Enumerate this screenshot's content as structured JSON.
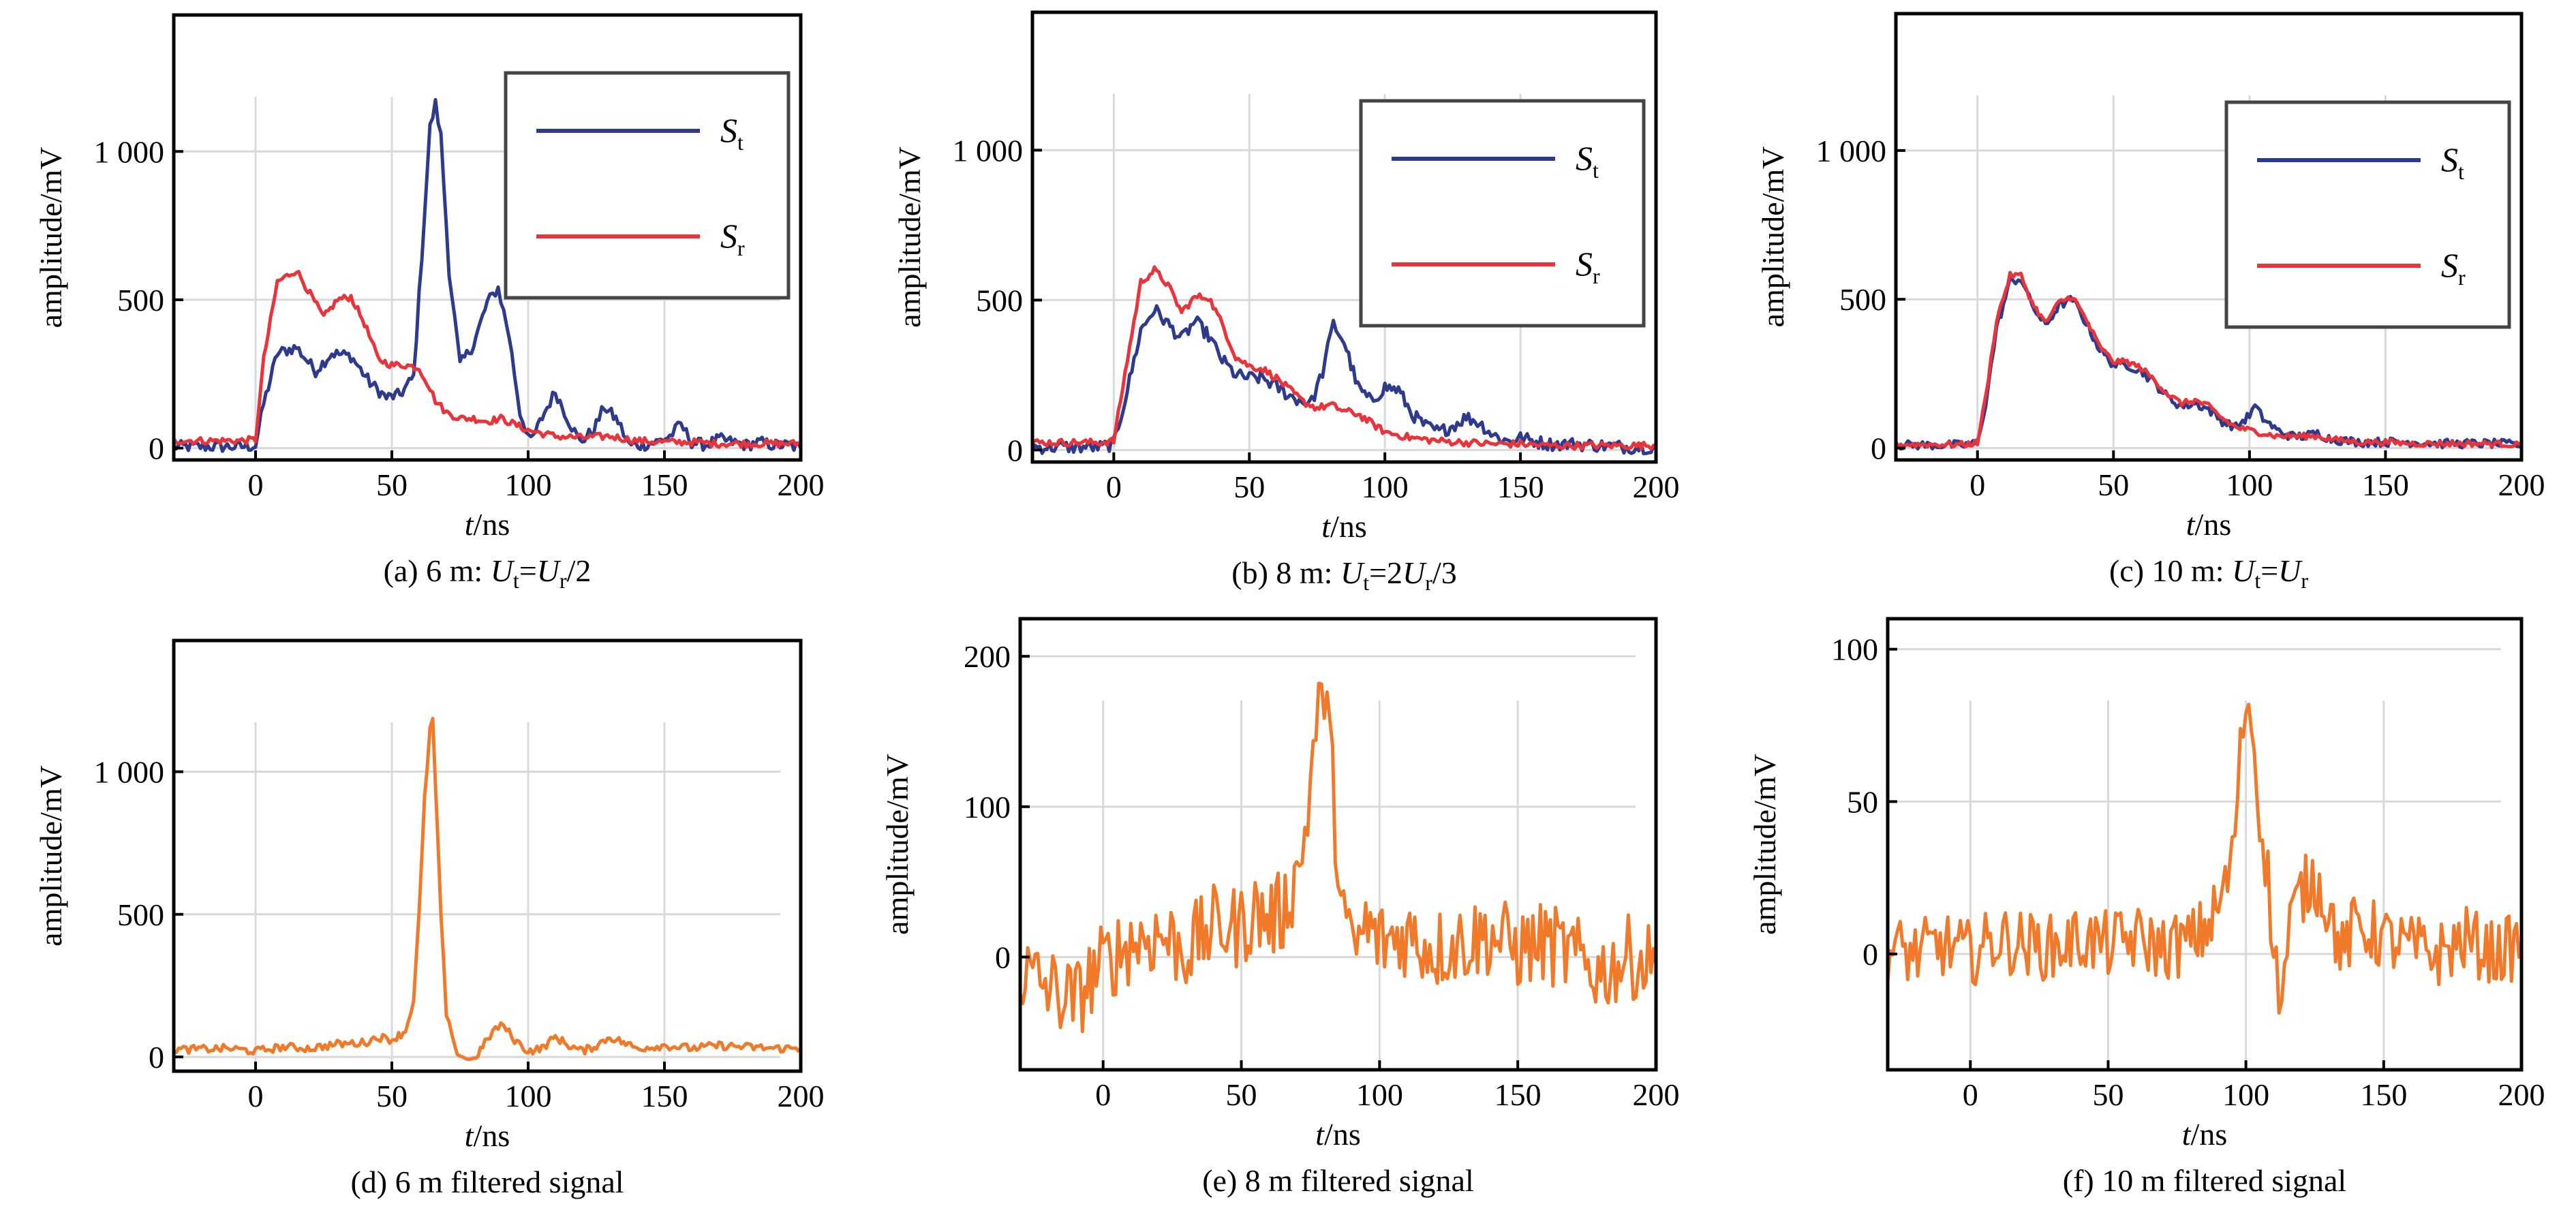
{
  "colors": {
    "st": "#2e3a8c",
    "sr": "#e8343a",
    "filtered": "#f07a2a",
    "grid": "#d9d9d9",
    "axis": "#000000"
  },
  "chart_data": [
    {
      "id": "a",
      "type": "line",
      "caption": "(a) 6 m: Ut=Ur/2",
      "caption_parts": [
        "(a) 6 m: ",
        "U",
        "t",
        "=",
        "U",
        "r",
        "/2"
      ],
      "xlabel_parts": [
        "t",
        "/ns"
      ],
      "ylabel": "amplitude/mV",
      "xlim": [
        -30,
        200
      ],
      "ylim": [
        -40,
        1460
      ],
      "xticks": [
        0,
        50,
        100,
        150,
        200
      ],
      "xtick_labels": [
        "0",
        "50",
        "100",
        "150",
        "200"
      ],
      "yticks": [
        0,
        500,
        1000
      ],
      "ytick_labels": [
        "0",
        "500",
        "1 000"
      ],
      "grid": true,
      "legend": {
        "placement": "top-right",
        "entries": [
          {
            "main": "S",
            "sub": "t",
            "series": "St"
          },
          {
            "main": "S",
            "sub": "r",
            "series": "Sr"
          }
        ]
      },
      "series": [
        {
          "name": "St",
          "color": "#2e3a8c",
          "x": [
            -30,
            -5,
            0,
            3,
            8,
            15,
            22,
            28,
            35,
            42,
            48,
            53,
            58,
            61,
            64,
            66,
            68,
            71,
            75,
            80,
            85,
            89,
            93,
            97,
            101,
            106,
            110,
            115,
            119,
            124,
            128,
            133,
            137,
            142,
            147,
            152,
            156,
            160,
            165,
            170,
            175,
            180,
            185,
            190,
            195,
            200
          ],
          "y": [
            5,
            5,
            8,
            150,
            320,
            340,
            260,
            320,
            310,
            220,
            170,
            180,
            240,
            650,
            1080,
            1160,
            1050,
            600,
            280,
            350,
            490,
            540,
            380,
            120,
            20,
            120,
            190,
            90,
            20,
            60,
            140,
            90,
            10,
            10,
            20,
            40,
            80,
            20,
            10,
            30,
            20,
            10,
            20,
            10,
            10,
            0
          ]
        },
        {
          "name": "Sr",
          "color": "#e8343a",
          "x": [
            -30,
            -5,
            0,
            3,
            8,
            15,
            20,
            25,
            30,
            35,
            40,
            45,
            50,
            55,
            60,
            63,
            66,
            70,
            75,
            80,
            85,
            90,
            95,
            100,
            110,
            120,
            130,
            140,
            150,
            160,
            170,
            180,
            190,
            200
          ],
          "y": [
            25,
            25,
            28,
            300,
            560,
            600,
            520,
            440,
            500,
            510,
            420,
            300,
            280,
            280,
            270,
            220,
            160,
            120,
            100,
            100,
            90,
            100,
            80,
            60,
            40,
            35,
            40,
            25,
            20,
            20,
            15,
            15,
            15,
            15
          ]
        }
      ]
    },
    {
      "id": "b",
      "type": "line",
      "caption": "(b) 8 m: Ut=2Ur/3",
      "caption_parts": [
        "(b) 8 m: ",
        "U",
        "t",
        "=2",
        "U",
        "r",
        "/3"
      ],
      "xlabel_parts": [
        "t",
        "/ns"
      ],
      "ylabel": "amplitude/mV",
      "xlim": [
        -30,
        200
      ],
      "ylim": [
        -40,
        1460
      ],
      "xticks": [
        0,
        50,
        100,
        150,
        200
      ],
      "xtick_labels": [
        "0",
        "50",
        "100",
        "150",
        "200"
      ],
      "yticks": [
        0,
        500,
        1000
      ],
      "ytick_labels": [
        "0",
        "500",
        "1 000"
      ],
      "grid": true,
      "legend": {
        "placement": "top-right",
        "entries": [
          {
            "main": "S",
            "sub": "t",
            "series": "St"
          },
          {
            "main": "S",
            "sub": "r",
            "series": "Sr"
          }
        ]
      },
      "series": [
        {
          "name": "St",
          "color": "#2e3a8c",
          "x": [
            -30,
            -5,
            0,
            5,
            10,
            15,
            20,
            25,
            30,
            35,
            40,
            45,
            50,
            55,
            60,
            65,
            70,
            73,
            77,
            81,
            85,
            90,
            95,
            100,
            105,
            110,
            115,
            120,
            125,
            130,
            135,
            140,
            145,
            150,
            155,
            160,
            170,
            180,
            190,
            200
          ],
          "y": [
            10,
            10,
            20,
            200,
            400,
            470,
            420,
            370,
            430,
            380,
            300,
            250,
            240,
            240,
            210,
            180,
            160,
            160,
            260,
            420,
            360,
            210,
            160,
            210,
            200,
            120,
            80,
            60,
            80,
            110,
            90,
            50,
            30,
            40,
            30,
            20,
            20,
            15,
            10,
            10
          ]
        },
        {
          "name": "Sr",
          "color": "#e8343a",
          "x": [
            -30,
            -5,
            0,
            5,
            10,
            15,
            20,
            25,
            30,
            35,
            40,
            45,
            50,
            55,
            60,
            65,
            70,
            75,
            80,
            85,
            90,
            95,
            100,
            110,
            120,
            130,
            140,
            150,
            160,
            170,
            180,
            190,
            200
          ],
          "y": [
            25,
            25,
            30,
            300,
            560,
            600,
            550,
            460,
            510,
            510,
            420,
            310,
            280,
            270,
            240,
            200,
            160,
            140,
            150,
            130,
            120,
            90,
            60,
            40,
            30,
            25,
            20,
            20,
            15,
            15,
            15,
            15,
            15
          ]
        }
      ]
    },
    {
      "id": "c",
      "type": "line",
      "caption": "(c) 10 m: Ut=Ur",
      "caption_parts": [
        "(c) 10 m: ",
        "U",
        "t",
        "=",
        "U",
        "r",
        ""
      ],
      "xlabel_parts": [
        "t",
        "/ns"
      ],
      "ylabel": "amplitude/mV",
      "xlim": [
        -30,
        200
      ],
      "ylim": [
        -40,
        1460
      ],
      "xticks": [
        0,
        50,
        100,
        150,
        200
      ],
      "xtick_labels": [
        "0",
        "50",
        "100",
        "150",
        "200"
      ],
      "yticks": [
        0,
        500,
        1000
      ],
      "ytick_labels": [
        "0",
        "500",
        "1 000"
      ],
      "grid": true,
      "legend": {
        "placement": "top-right",
        "entries": [
          {
            "main": "S",
            "sub": "t",
            "series": "St"
          },
          {
            "main": "S",
            "sub": "r",
            "series": "Sr"
          }
        ]
      },
      "series": [
        {
          "name": "St",
          "color": "#2e3a8c",
          "x": [
            -30,
            -5,
            0,
            3,
            7,
            12,
            16,
            20,
            25,
            30,
            35,
            40,
            45,
            50,
            55,
            60,
            65,
            70,
            75,
            80,
            85,
            90,
            95,
            100,
            102,
            105,
            110,
            115,
            120,
            125,
            130,
            140,
            150,
            160,
            170,
            180,
            190,
            200
          ],
          "y": [
            10,
            10,
            15,
            150,
            400,
            560,
            570,
            480,
            410,
            480,
            500,
            420,
            330,
            280,
            280,
            260,
            220,
            170,
            140,
            150,
            130,
            90,
            70,
            110,
            140,
            100,
            60,
            40,
            40,
            50,
            30,
            20,
            20,
            20,
            15,
            15,
            15,
            10
          ]
        },
        {
          "name": "Sr",
          "color": "#e8343a",
          "x": [
            -30,
            -5,
            0,
            3,
            7,
            12,
            16,
            20,
            25,
            30,
            35,
            40,
            45,
            50,
            55,
            60,
            65,
            70,
            75,
            80,
            85,
            90,
            95,
            100,
            105,
            110,
            115,
            120,
            125,
            130,
            140,
            150,
            160,
            170,
            180,
            190,
            200
          ],
          "y": [
            12,
            12,
            18,
            170,
            430,
            580,
            580,
            490,
            420,
            490,
            510,
            430,
            340,
            290,
            290,
            270,
            230,
            180,
            150,
            160,
            140,
            100,
            70,
            60,
            50,
            40,
            40,
            40,
            40,
            30,
            20,
            20,
            15,
            15,
            15,
            15,
            10
          ]
        }
      ]
    },
    {
      "id": "d",
      "type": "line",
      "caption": "(d) 6 m filtered signal",
      "caption_parts": [
        "(d) 6 m filtered signal"
      ],
      "xlabel_parts": [
        "t",
        "/ns"
      ],
      "ylabel": "amplitude/mV",
      "xlim": [
        -30,
        200
      ],
      "ylim": [
        -50,
        1460
      ],
      "xticks": [
        0,
        50,
        100,
        150,
        200
      ],
      "xtick_labels": [
        "0",
        "50",
        "100",
        "150",
        "200"
      ],
      "yticks": [
        0,
        500,
        1000
      ],
      "ytick_labels": [
        "0",
        "500",
        "1 000"
      ],
      "grid": true,
      "series": [
        {
          "name": "",
          "color": "#f07a2a",
          "x": [
            -30,
            -10,
            0,
            10,
            20,
            30,
            40,
            45,
            50,
            55,
            58,
            60,
            62,
            64,
            65,
            66,
            68,
            70,
            73,
            76,
            80,
            85,
            88,
            91,
            95,
            100,
            105,
            110,
            115,
            120,
            125,
            130,
            135,
            140,
            150,
            160,
            170,
            180,
            190,
            200
          ],
          "y": [
            25,
            30,
            20,
            35,
            30,
            45,
            50,
            70,
            60,
            90,
            200,
            500,
            900,
            1150,
            1180,
            950,
            500,
            150,
            30,
            0,
            -10,
            60,
            100,
            110,
            60,
            20,
            30,
            70,
            40,
            20,
            40,
            70,
            50,
            30,
            40,
            30,
            40,
            35,
            30,
            30
          ]
        }
      ]
    },
    {
      "id": "e",
      "type": "line",
      "caption": "(e) 8 m filtered signal",
      "caption_parts": [
        "(e) 8 m filtered signal"
      ],
      "xlabel_parts": [
        "t",
        "/ns"
      ],
      "ylabel": "amplitude/mV",
      "xlim": [
        -30,
        200
      ],
      "ylim": [
        -75,
        225
      ],
      "xticks": [
        0,
        50,
        100,
        150,
        200
      ],
      "xtick_labels": [
        "0",
        "50",
        "100",
        "150",
        "200"
      ],
      "yticks": [
        0,
        100,
        200
      ],
      "ytick_labels": [
        "0",
        "100",
        "200"
      ],
      "grid": true,
      "series": [
        {
          "name": "",
          "color": "#f07a2a",
          "x": [
            -30,
            -20,
            -10,
            -5,
            0,
            10,
            20,
            30,
            40,
            50,
            55,
            60,
            65,
            70,
            73,
            75,
            77,
            79,
            80,
            82,
            84,
            86,
            88,
            90,
            95,
            100,
            110,
            120,
            130,
            140,
            150,
            160,
            170,
            180,
            190,
            200
          ],
          "y": [
            -10,
            -20,
            -30,
            -15,
            -5,
            10,
            15,
            5,
            20,
            20,
            30,
            25,
            30,
            55,
            80,
            120,
            150,
            170,
            180,
            140,
            90,
            45,
            20,
            0,
            20,
            10,
            15,
            5,
            10,
            15,
            5,
            10,
            0,
            -10,
            0,
            -5
          ]
        }
      ]
    },
    {
      "id": "f",
      "type": "line",
      "caption": "(f) 10 m filtered signal",
      "caption_parts": [
        "(f) 10 m filtered signal"
      ],
      "xlabel_parts": [
        "t",
        "/ns"
      ],
      "ylabel": "amplitude/mV",
      "xlim": [
        -30,
        200
      ],
      "ylim": [
        -38,
        110
      ],
      "xticks": [
        0,
        50,
        100,
        150,
        200
      ],
      "xtick_labels": [
        "0",
        "50",
        "100",
        "150",
        "200"
      ],
      "yticks": [
        0,
        50,
        100
      ],
      "ytick_labels": [
        "0",
        "50",
        "100"
      ],
      "grid": true,
      "series": [
        {
          "name": "",
          "color": "#f07a2a",
          "x": [
            -30,
            -20,
            -10,
            0,
            10,
            20,
            30,
            40,
            50,
            60,
            70,
            80,
            85,
            90,
            95,
            98,
            100,
            102,
            104,
            106,
            108,
            110,
            113,
            116,
            120,
            125,
            130,
            135,
            140,
            150,
            160,
            170,
            180,
            190,
            200
          ],
          "y": [
            2,
            0,
            3,
            0,
            5,
            3,
            2,
            5,
            3,
            5,
            2,
            4,
            8,
            15,
            30,
            65,
            85,
            78,
            55,
            40,
            25,
            0,
            -15,
            10,
            20,
            25,
            15,
            0,
            10,
            5,
            2,
            0,
            5,
            0,
            3
          ]
        }
      ]
    }
  ]
}
